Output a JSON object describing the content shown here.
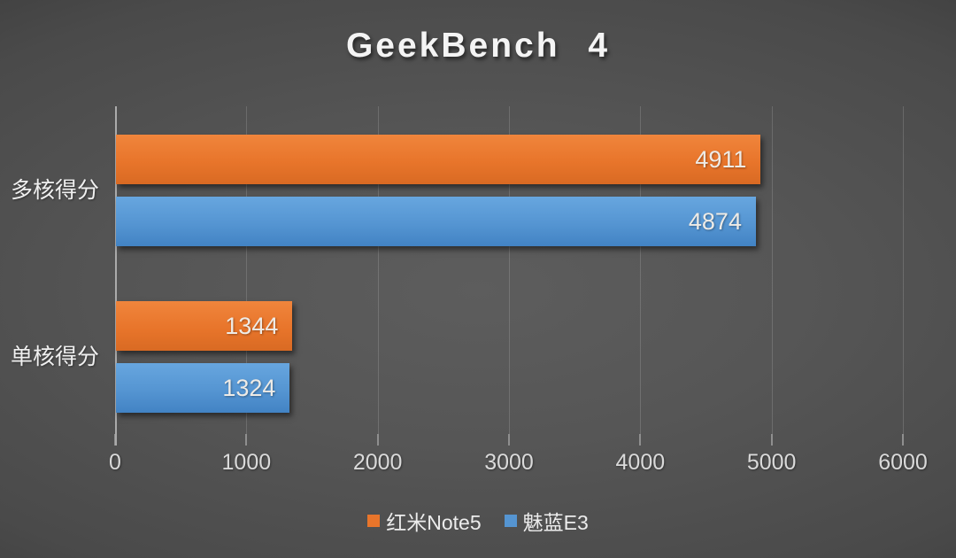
{
  "chart_data": {
    "type": "bar",
    "orientation": "horizontal",
    "title": "GeekBench 4",
    "categories": [
      "多核得分",
      "单核得分"
    ],
    "series": [
      {
        "name": "红米Note5",
        "color": "#E8752B",
        "color_light": "#F0853C",
        "color_dark": "#D96A23",
        "values": [
          4911,
          1344
        ]
      },
      {
        "name": "魅蓝E3",
        "color": "#5595D2",
        "color_light": "#67A6DF",
        "color_dark": "#4283C4",
        "values": [
          4874,
          1324
        ]
      }
    ],
    "xlim": [
      0,
      6000
    ],
    "x_ticks": [
      "0",
      "1000",
      "2000",
      "3000",
      "4000",
      "5000",
      "6000"
    ],
    "grid": true,
    "legend_position": "bottom",
    "value_labels": "inside-end",
    "background": "dark-radial-gray"
  }
}
